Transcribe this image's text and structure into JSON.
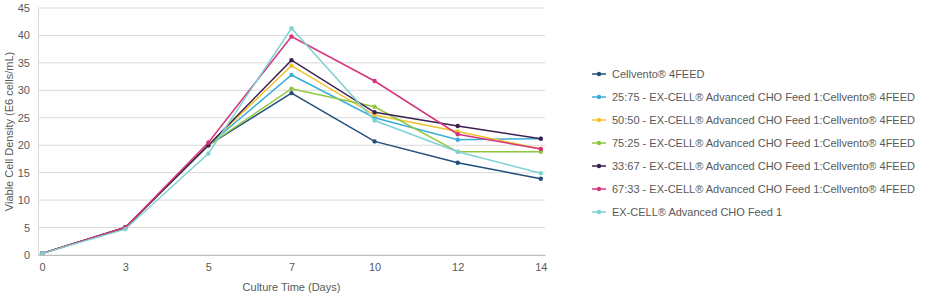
{
  "chart_data": {
    "type": "line",
    "x_label": "Culture Time (Days)",
    "y_label": "Viable Cell Density (E6 cells/mL)",
    "categories": [
      "0",
      "3",
      "5",
      "7",
      "10",
      "12",
      "14"
    ],
    "ylim": [
      0,
      45
    ],
    "yticks": [
      0,
      5,
      10,
      15,
      20,
      25,
      30,
      35,
      40,
      45
    ],
    "grid": true,
    "legend": "right",
    "marker": "circle",
    "series": [
      {
        "name": "Cellvento® 4FEED",
        "color": "#1f4e79",
        "values": [
          0.3,
          5,
          20,
          29.5,
          20.7,
          16.8,
          13.9
        ]
      },
      {
        "name": "25:75 - EX-CELL® Advanced CHO Feed 1:Cellvento® 4FEED",
        "color": "#3aaed8",
        "values": [
          0.3,
          5,
          20,
          32.8,
          25,
          21,
          21.2
        ]
      },
      {
        "name": "50:50 - EX-CELL® Advanced CHO Feed 1:Cellvento® 4FEED",
        "color": "#f2c12e",
        "values": [
          0.3,
          5,
          20,
          34.5,
          25.5,
          22.5,
          19.3
        ]
      },
      {
        "name": "75:25 - EX-CELL® Advanced CHO Feed 1:Cellvento® 4FEED",
        "color": "#8dc63f",
        "values": [
          0.3,
          5,
          20,
          30.3,
          27,
          18.8,
          18.8
        ]
      },
      {
        "name": "33:67 - EX-CELL® Advanced CHO Feed 1:Cellvento® 4FEED",
        "color": "#3b1f4f",
        "values": [
          0.3,
          5,
          20,
          35.5,
          26,
          23.5,
          21.2
        ]
      },
      {
        "name": "67:33 - EX-CELL® Advanced CHO Feed 1:Cellvento® 4FEED",
        "color": "#d6337f",
        "values": [
          0.3,
          5,
          20.5,
          39.8,
          31.7,
          22,
          19.3
        ]
      },
      {
        "name": "EX-CELL® Advanced CHO Feed 1",
        "color": "#7fd1d3",
        "values": [
          0.3,
          4.7,
          18.5,
          41.3,
          24.5,
          18.8,
          14.9
        ]
      }
    ]
  }
}
